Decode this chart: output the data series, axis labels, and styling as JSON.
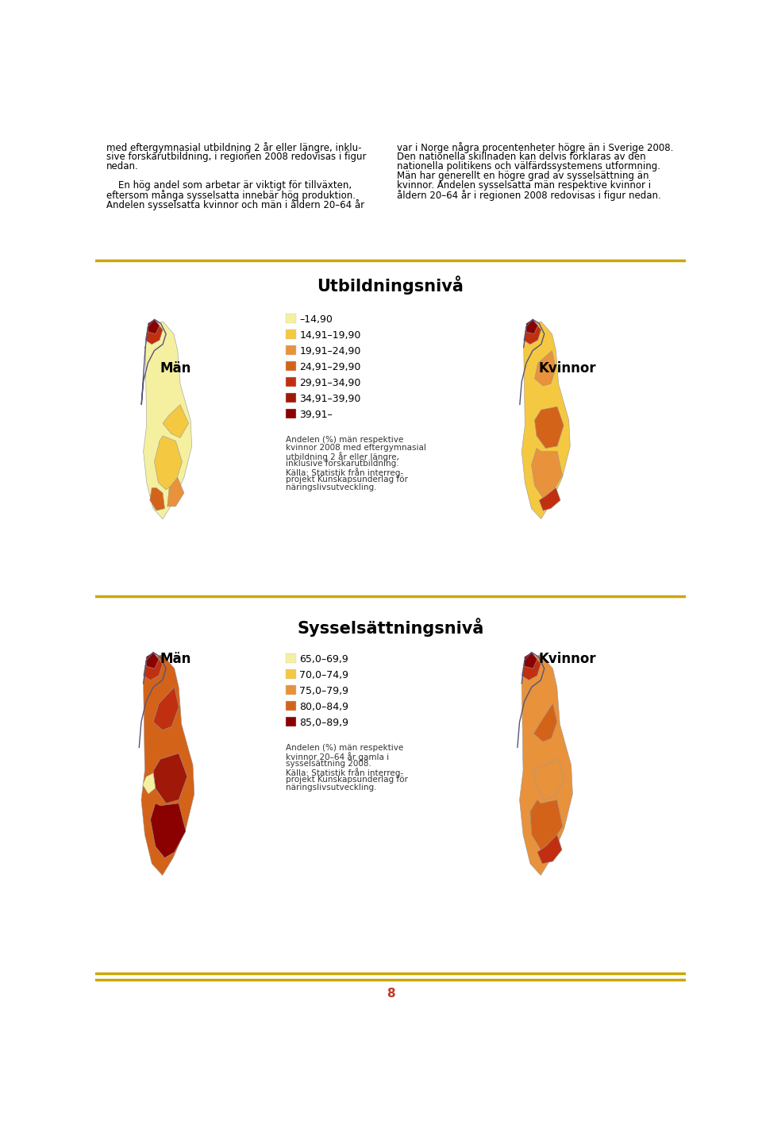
{
  "background_color": "#ffffff",
  "separator_color": "#c8a800",
  "page_number": "8",
  "page_number_color": "#c0392b",
  "text_col1_lines": [
    "med eftergymnasial utbildning 2 år eller längre, inklu-",
    "sive forskarutbildning, i regionen 2008 redovisas i figur",
    "nedan.",
    "",
    "    En hög andel som arbetar är viktigt för tillväxten,",
    "eftersom många sysselsatta innebär hög produktion.",
    "Andelen sysselsatta kvinnor och män i åldern 20–64 år"
  ],
  "text_col2_lines": [
    "var i Norge några procentenheter högre än i Sverige 2008.",
    "Den nationella skillnaden kan delvis förklaras av den",
    "nationella politikens och välfärdssystemens utformning.",
    "Män har generellt en högre grad av sysselsättning än",
    "kvinnor. Andelen sysselsatta män respektive kvinnor i",
    "åldern 20–64 år i regionen 2008 redovisas i figur nedan."
  ],
  "section1_title": "Utbildningsnivå",
  "section1_man_label": "Män",
  "section1_woman_label": "Kvinnor",
  "section1_legend_items": [
    {
      "label": "–14,90",
      "color": "#f5f0a0"
    },
    {
      "label": "14,91–19,90",
      "color": "#f5c842"
    },
    {
      "label": "19,91–24,90",
      "color": "#e8923c"
    },
    {
      "label": "24,91–29,90",
      "color": "#d4631a"
    },
    {
      "label": "29,91–34,90",
      "color": "#c03010"
    },
    {
      "label": "34,91–39,90",
      "color": "#a01808"
    },
    {
      "label": "39,91–",
      "color": "#8b0000"
    }
  ],
  "section1_caption_lines": [
    "Andelen (%) män respektive",
    "kvinnor 2008 med eftergymnasial",
    "utbildning 2 år eller längre,",
    "inklusive forskarutbildning.",
    "Källa: Statistik från interreg-",
    "projekt Kunskapsunderlag för",
    "näringslivsutveckling."
  ],
  "section2_title": "Sysselsättningsnivå",
  "section2_man_label": "Män",
  "section2_woman_label": "Kvinnor",
  "section2_legend_items": [
    {
      "label": "65,0–69,9",
      "color": "#f5f0a0"
    },
    {
      "label": "70,0–74,9",
      "color": "#f5c842"
    },
    {
      "label": "75,0–79,9",
      "color": "#e8923c"
    },
    {
      "label": "80,0–84,9",
      "color": "#d4631a"
    },
    {
      "label": "85,0–89,9",
      "color": "#8b0000"
    }
  ],
  "section2_caption_lines": [
    "Andelen (%) män respektive",
    "kvinnor 20–64 år gamla i",
    "sysselsättning 2008.",
    "Källa: Statistik från interreg-",
    "projekt Kunskapsunderlag för",
    "näringslivsutveckling."
  ],
  "text_fontsize": 8.5,
  "title_fontsize": 15,
  "label_fontsize": 12,
  "legend_fontsize": 9,
  "caption_fontsize": 7.5
}
